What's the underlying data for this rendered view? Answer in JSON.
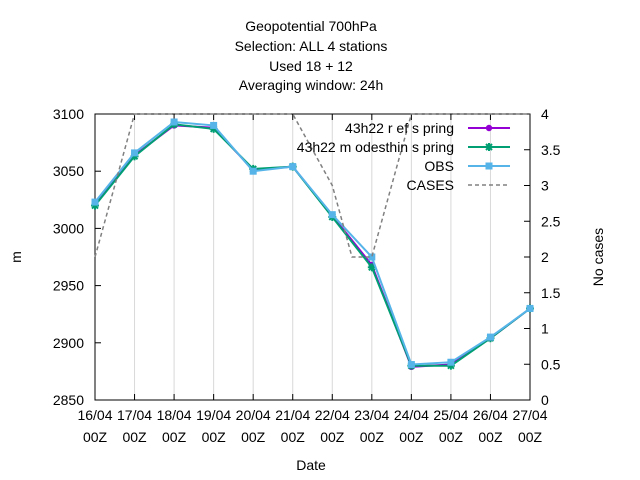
{
  "chart_data": {
    "type": "line",
    "title_lines": [
      "Geopotential 700hPa",
      "Selection: ALL      4 stations",
      "Used  18  + 12",
      "Averaging window: 24h"
    ],
    "xlabel": "Date",
    "ylabel": "m",
    "y2label": "No cases",
    "ylim": [
      2850,
      3100
    ],
    "y2lim": [
      0,
      4
    ],
    "yticks": [
      2850,
      2900,
      2950,
      3000,
      3050,
      3100
    ],
    "y2ticks": [
      "0",
      "0.5",
      "1",
      "1.5",
      "2",
      "2.5",
      "3",
      "3.5",
      "4"
    ],
    "xlim": [
      0,
      11
    ],
    "x_ticks": [
      {
        "date": "16/04",
        "hour": "00Z"
      },
      {
        "date": "17/04",
        "hour": "00Z"
      },
      {
        "date": "18/04",
        "hour": "00Z"
      },
      {
        "date": "19/04",
        "hour": "00Z"
      },
      {
        "date": "20/04",
        "hour": "00Z"
      },
      {
        "date": "21/04",
        "hour": "00Z"
      },
      {
        "date": "22/04",
        "hour": "00Z"
      },
      {
        "date": "23/04",
        "hour": "00Z"
      },
      {
        "date": "24/04",
        "hour": "00Z"
      },
      {
        "date": "25/04",
        "hour": "00Z"
      },
      {
        "date": "26/04",
        "hour": "00Z"
      },
      {
        "date": "27/04",
        "hour": "00Z"
      }
    ],
    "series": [
      {
        "name": "43h22 ref_spring",
        "legend_label": "43h22 r ef s pring",
        "color": "#9400d3",
        "marker": "circle",
        "axis": "y1",
        "x": [
          0,
          1,
          2,
          3,
          4,
          5,
          6,
          7,
          8,
          9,
          10,
          11
        ],
        "values": [
          3021,
          3064,
          3090,
          3088,
          3051,
          3054,
          3011,
          2968,
          2879,
          2881,
          2904,
          2930
        ]
      },
      {
        "name": "43h22 modesthin_spring",
        "legend_label": "43h22 m odesthin s pring",
        "color": "#009e73",
        "marker": "star",
        "axis": "y1",
        "x": [
          0,
          1,
          2,
          3,
          4,
          5,
          6,
          7,
          8,
          9,
          10,
          11
        ],
        "values": [
          3020,
          3063,
          3091,
          3087,
          3052,
          3054,
          3010,
          2966,
          2880,
          2880,
          2904,
          2930
        ]
      },
      {
        "name": "OBS",
        "legend_label": "OBS",
        "color": "#56b4e9",
        "marker": "square",
        "axis": "y1",
        "x": [
          0,
          1,
          2,
          3,
          4,
          5,
          6,
          7,
          8,
          9,
          10,
          11
        ],
        "values": [
          3023,
          3066,
          3093,
          3090,
          3050,
          3054,
          3012,
          2975,
          2881,
          2883,
          2905,
          2930
        ]
      },
      {
        "name": "CASES",
        "legend_label": "CASES",
        "color": "#808080",
        "marker": "none",
        "axis": "y2",
        "dashed": true,
        "x": [
          0,
          1,
          2,
          3,
          4,
          5,
          6,
          6.5,
          7,
          8,
          8.5,
          9,
          10,
          11
        ],
        "values": [
          2,
          4,
          4,
          4,
          4,
          4,
          3,
          2,
          2,
          4,
          4,
          4,
          4,
          4
        ]
      }
    ],
    "legend_position": "top-right",
    "grid": true
  }
}
